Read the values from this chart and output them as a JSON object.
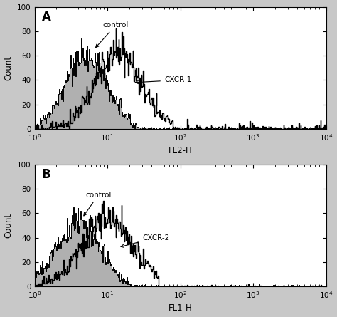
{
  "fig_width": 4.74,
  "fig_height": 4.45,
  "dpi": 100,
  "bg_color": "#c8c8c8",
  "panel_bg": "#ffffff",
  "panel_A_label": "A",
  "panel_B_label": "B",
  "xlabel_A": "FL2-H",
  "xlabel_B": "FL1-H",
  "ylabel": "Count",
  "ylim": [
    0,
    100
  ],
  "xlim_log": [
    1,
    10000
  ],
  "yticks": [
    0,
    20,
    40,
    60,
    80,
    100
  ],
  "control_label": "control",
  "cxcr1_label": "CXCR-1",
  "cxcr2_label": "CXCR-2",
  "fill_color": "#b0b0b0",
  "line_color": "#000000"
}
